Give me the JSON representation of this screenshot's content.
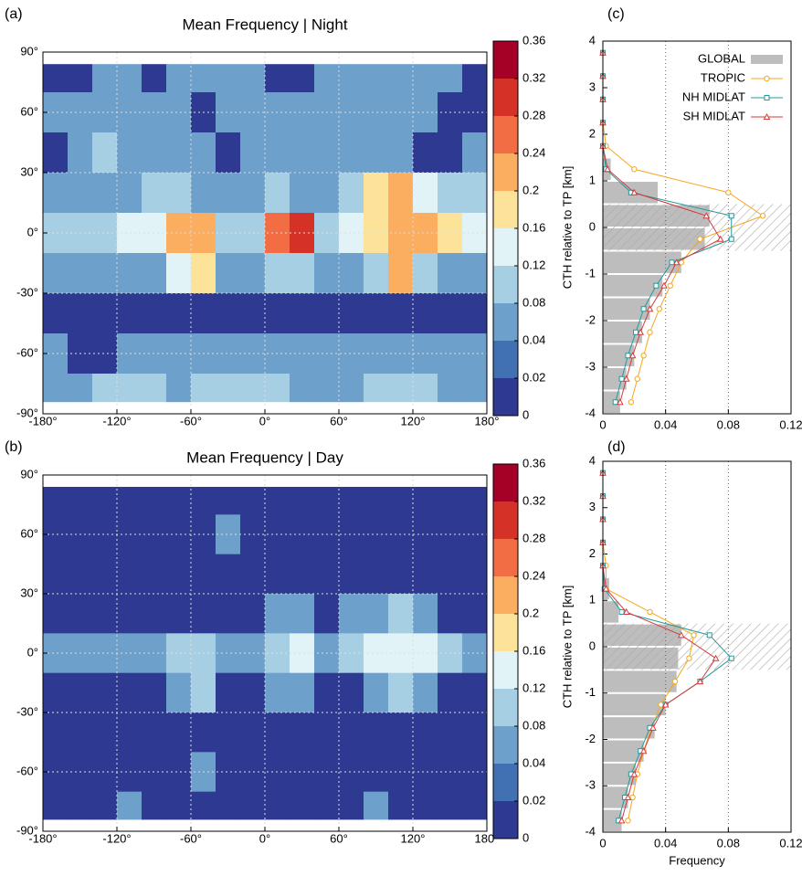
{
  "chart_data": [
    {
      "type": "heatmap",
      "panel": "(a)",
      "title": "Mean Frequency | Night",
      "xlim": [
        -180,
        180
      ],
      "ylim": [
        -90,
        90
      ],
      "xticks": [
        {
          "value": -180,
          "label": "-180°"
        },
        {
          "value": -120,
          "label": "-120°"
        },
        {
          "value": -60,
          "label": "-60°"
        },
        {
          "value": 0,
          "label": "0°"
        },
        {
          "value": 60,
          "label": "60°"
        },
        {
          "value": 120,
          "label": "120°"
        },
        {
          "value": 180,
          "label": "180°"
        }
      ],
      "yticks": [
        {
          "value": -90,
          "label": "-90°"
        },
        {
          "value": -60,
          "label": "-60°"
        },
        {
          "value": -30,
          "label": "-30°"
        },
        {
          "value": 0,
          "label": "0°"
        },
        {
          "value": 30,
          "label": "30°"
        },
        {
          "value": 60,
          "label": "60°"
        },
        {
          "value": 90,
          "label": "90°"
        }
      ],
      "x_edges": [
        -180,
        -160,
        -140,
        -120,
        -100,
        -80,
        -60,
        -40,
        -20,
        0,
        20,
        40,
        60,
        80,
        100,
        120,
        140,
        160,
        180
      ],
      "y_edges": [
        84,
        70,
        50,
        30,
        10,
        -10,
        -30,
        -50,
        -70,
        -84
      ],
      "values": [
        [
          0.01,
          0.01,
          0.05,
          0.05,
          0.01,
          0.05,
          0.05,
          0.05,
          0.05,
          0.01,
          0.01,
          0.05,
          0.05,
          0.05,
          0.05,
          0.05,
          0.05,
          0.01
        ],
        [
          0.05,
          0.05,
          0.05,
          0.05,
          0.05,
          0.05,
          0.01,
          0.05,
          0.05,
          0.05,
          0.05,
          0.05,
          0.05,
          0.05,
          0.05,
          0.05,
          0.01,
          0.01
        ],
        [
          0.01,
          0.05,
          0.1,
          0.05,
          0.05,
          0.05,
          0.05,
          0.01,
          0.05,
          0.05,
          0.05,
          0.05,
          0.05,
          0.05,
          0.05,
          0.01,
          0.01,
          0.05
        ],
        [
          0.05,
          0.05,
          0.05,
          0.05,
          0.1,
          0.1,
          0.05,
          0.05,
          0.05,
          0.1,
          0.05,
          0.05,
          0.1,
          0.18,
          0.22,
          0.14,
          0.1,
          0.1
        ],
        [
          0.1,
          0.1,
          0.1,
          0.14,
          0.14,
          0.2,
          0.22,
          0.1,
          0.1,
          0.26,
          0.3,
          0.1,
          0.12,
          0.18,
          0.22,
          0.22,
          0.18,
          0.14
        ],
        [
          0.05,
          0.05,
          0.05,
          0.05,
          0.05,
          0.14,
          0.18,
          0.05,
          0.05,
          0.1,
          0.1,
          0.05,
          0.05,
          0.1,
          0.2,
          0.1,
          0.05,
          0.05
        ],
        [
          0.01,
          0.01,
          0.01,
          0.01,
          0.01,
          0.01,
          0.01,
          0.01,
          0.01,
          0.01,
          0.01,
          0.01,
          0.01,
          0.01,
          0.01,
          0.01,
          0.01,
          0.01
        ],
        [
          0.05,
          0.01,
          0.01,
          0.05,
          0.05,
          0.05,
          0.05,
          0.05,
          0.05,
          0.05,
          0.05,
          0.05,
          0.05,
          0.05,
          0.05,
          0.05,
          0.05,
          0.05
        ],
        [
          0.05,
          0.05,
          0.1,
          0.1,
          0.1,
          0.05,
          0.1,
          0.1,
          0.1,
          0.1,
          0.05,
          0.05,
          0.05,
          0.1,
          0.1,
          0.1,
          0.05,
          0.05
        ]
      ],
      "colorbar": {
        "bounds": [
          0,
          0.02,
          0.04,
          0.08,
          0.12,
          0.16,
          0.2,
          0.24,
          0.28,
          0.32,
          0.36
        ],
        "colors": [
          "#2e3a92",
          "#4171b3",
          "#6ea0cc",
          "#a6cfe3",
          "#e2f3f7",
          "#fde39a",
          "#fbad60",
          "#f26d43",
          "#d63127",
          "#a50026"
        ]
      },
      "grid": true
    },
    {
      "type": "heatmap",
      "panel": "(b)",
      "title": "Mean Frequency | Day",
      "xlim": [
        -180,
        180
      ],
      "ylim": [
        -90,
        90
      ],
      "xticks": [
        {
          "value": -180,
          "label": "-180°"
        },
        {
          "value": -120,
          "label": "-120°"
        },
        {
          "value": -60,
          "label": "-60°"
        },
        {
          "value": 0,
          "label": "0°"
        },
        {
          "value": 60,
          "label": "60°"
        },
        {
          "value": 120,
          "label": "120°"
        },
        {
          "value": 180,
          "label": "180°"
        }
      ],
      "yticks": [
        {
          "value": -90,
          "label": "-90°"
        },
        {
          "value": -60,
          "label": "-60°"
        },
        {
          "value": -30,
          "label": "-30°"
        },
        {
          "value": 0,
          "label": "0°"
        },
        {
          "value": 30,
          "label": "30°"
        },
        {
          "value": 60,
          "label": "60°"
        },
        {
          "value": 90,
          "label": "90°"
        }
      ],
      "x_edges": [
        -180,
        -160,
        -140,
        -120,
        -100,
        -80,
        -60,
        -40,
        -20,
        0,
        20,
        40,
        60,
        80,
        100,
        120,
        140,
        160,
        180
      ],
      "y_edges": [
        84,
        70,
        50,
        30,
        10,
        -10,
        -30,
        -50,
        -70,
        -84
      ],
      "values": [
        [
          0.01,
          0.01,
          0.01,
          0.01,
          0.01,
          0.01,
          0.01,
          0.01,
          0.01,
          0.01,
          0.01,
          0.01,
          0.01,
          0.01,
          0.01,
          0.01,
          0.01,
          0.01
        ],
        [
          0.01,
          0.01,
          0.01,
          0.01,
          0.01,
          0.01,
          0.01,
          0.05,
          0.01,
          0.01,
          0.01,
          0.01,
          0.01,
          0.01,
          0.01,
          0.01,
          0.01,
          0.01
        ],
        [
          0.01,
          0.01,
          0.01,
          0.01,
          0.01,
          0.01,
          0.01,
          0.01,
          0.01,
          0.01,
          0.01,
          0.01,
          0.01,
          0.01,
          0.01,
          0.01,
          0.01,
          0.01
        ],
        [
          0.01,
          0.01,
          0.01,
          0.01,
          0.01,
          0.01,
          0.01,
          0.01,
          0.01,
          0.05,
          0.05,
          0.01,
          0.05,
          0.05,
          0.1,
          0.05,
          0.01,
          0.01
        ],
        [
          0.05,
          0.05,
          0.05,
          0.05,
          0.05,
          0.1,
          0.1,
          0.05,
          0.05,
          0.1,
          0.14,
          0.05,
          0.1,
          0.12,
          0.14,
          0.14,
          0.1,
          0.05
        ],
        [
          0.01,
          0.01,
          0.01,
          0.01,
          0.01,
          0.05,
          0.1,
          0.01,
          0.01,
          0.05,
          0.05,
          0.01,
          0.01,
          0.05,
          0.1,
          0.05,
          0.01,
          0.01
        ],
        [
          0.01,
          0.01,
          0.01,
          0.01,
          0.01,
          0.01,
          0.01,
          0.01,
          0.01,
          0.01,
          0.01,
          0.01,
          0.01,
          0.01,
          0.01,
          0.01,
          0.01,
          0.01
        ],
        [
          0.01,
          0.01,
          0.01,
          0.01,
          0.01,
          0.01,
          0.05,
          0.01,
          0.01,
          0.01,
          0.01,
          0.01,
          0.01,
          0.01,
          0.01,
          0.01,
          0.01,
          0.01
        ],
        [
          0.01,
          0.01,
          0.01,
          0.05,
          0.01,
          0.01,
          0.01,
          0.01,
          0.01,
          0.01,
          0.01,
          0.01,
          0.01,
          0.05,
          0.01,
          0.01,
          0.01,
          0.01
        ]
      ],
      "colorbar": {
        "bounds": [
          0,
          0.02,
          0.04,
          0.08,
          0.12,
          0.16,
          0.2,
          0.24,
          0.28,
          0.32,
          0.36
        ],
        "colors": [
          "#2e3a92",
          "#4171b3",
          "#6ea0cc",
          "#a6cfe3",
          "#e2f3f7",
          "#fde39a",
          "#fbad60",
          "#f26d43",
          "#d63127",
          "#a50026"
        ]
      },
      "grid": true
    },
    {
      "type": "profile",
      "panel": "(c)",
      "ylabel": "CTH relative to TP [km]",
      "xlim": [
        0,
        0.12
      ],
      "ylim": [
        -4,
        4
      ],
      "xticks": [
        0,
        0.04,
        0.08,
        0.12
      ],
      "yticks": [
        -4,
        -3,
        -2,
        -1,
        0,
        1,
        2,
        3,
        4
      ],
      "tp_band": [
        -0.5,
        0.5
      ],
      "grid": true,
      "legend": "top-right",
      "y": [
        3.75,
        3.25,
        2.75,
        2.25,
        1.75,
        1.25,
        0.75,
        0.25,
        -0.25,
        -0.75,
        -1.25,
        -1.75,
        -2.25,
        -2.75,
        -3.25,
        -3.75
      ],
      "series": [
        {
          "name": "GLOBAL",
          "kind": "bar",
          "color": "#bdbdbd",
          "values": [
            0,
            0,
            0,
            0,
            0,
            0.005,
            0.035,
            0.068,
            0.065,
            0.05,
            0.038,
            0.03,
            0.025,
            0.02,
            0.015,
            0.011
          ]
        },
        {
          "name": "TROPIC",
          "kind": "line",
          "marker": "circle",
          "color": "#f4a81d",
          "values": [
            0,
            0,
            0,
            0,
            0.002,
            0.02,
            0.08,
            0.102,
            0.062,
            0.05,
            0.043,
            0.036,
            0.03,
            0.026,
            0.022,
            0.018
          ]
        },
        {
          "name": "NH MIDLAT",
          "kind": "line",
          "marker": "square",
          "color": "#24999a",
          "values": [
            0,
            0,
            0,
            0,
            0,
            0.002,
            0.018,
            0.082,
            0.082,
            0.044,
            0.034,
            0.026,
            0.021,
            0.016,
            0.012,
            0.008
          ]
        },
        {
          "name": "SH MIDLAT",
          "kind": "line",
          "marker": "triangle",
          "color": "#d63a3a",
          "values": [
            0,
            0,
            0,
            0,
            0,
            0.003,
            0.02,
            0.066,
            0.075,
            0.047,
            0.039,
            0.03,
            0.024,
            0.019,
            0.015,
            0.011
          ]
        }
      ]
    },
    {
      "type": "profile",
      "panel": "(d)",
      "ylabel": "CTH relative to TP [km]",
      "xlabel": "Frequency",
      "xlim": [
        0,
        0.12
      ],
      "ylim": [
        -4,
        4
      ],
      "xticks": [
        0,
        0.04,
        0.08,
        0.12
      ],
      "yticks": [
        -4,
        -3,
        -2,
        -1,
        0,
        1,
        2,
        3,
        4
      ],
      "tp_band": [
        -0.5,
        0.5
      ],
      "grid": true,
      "y": [
        3.75,
        3.25,
        2.75,
        2.25,
        1.75,
        1.25,
        0.75,
        0.25,
        -0.25,
        -0.75,
        -1.25,
        -1.75,
        -2.25,
        -2.75,
        -3.25,
        -3.75
      ],
      "series": [
        {
          "kind": "bar",
          "color": "#bdbdbd",
          "values": [
            0,
            0,
            0,
            0,
            0,
            0.004,
            0.01,
            0.05,
            0.048,
            0.047,
            0.04,
            0.033,
            0.026,
            0.021,
            0.016,
            0.012
          ]
        },
        {
          "kind": "line",
          "marker": "circle",
          "color": "#f4a81d",
          "values": [
            0,
            0,
            0,
            0,
            0.002,
            0.002,
            0.03,
            0.058,
            0.055,
            0.046,
            0.037,
            0.031,
            0.026,
            0.022,
            0.019,
            0.016
          ]
        },
        {
          "kind": "line",
          "marker": "square",
          "color": "#24999a",
          "values": [
            0,
            0,
            0,
            0,
            0,
            0.001,
            0.012,
            0.068,
            0.082,
            0.062,
            0.04,
            0.03,
            0.024,
            0.018,
            0.014,
            0.01
          ]
        },
        {
          "kind": "line",
          "marker": "triangle",
          "color": "#d63a3a",
          "values": [
            0,
            0,
            0,
            0,
            0,
            0.002,
            0.015,
            0.05,
            0.072,
            0.062,
            0.04,
            0.032,
            0.026,
            0.02,
            0.016,
            0.012
          ]
        }
      ]
    }
  ]
}
